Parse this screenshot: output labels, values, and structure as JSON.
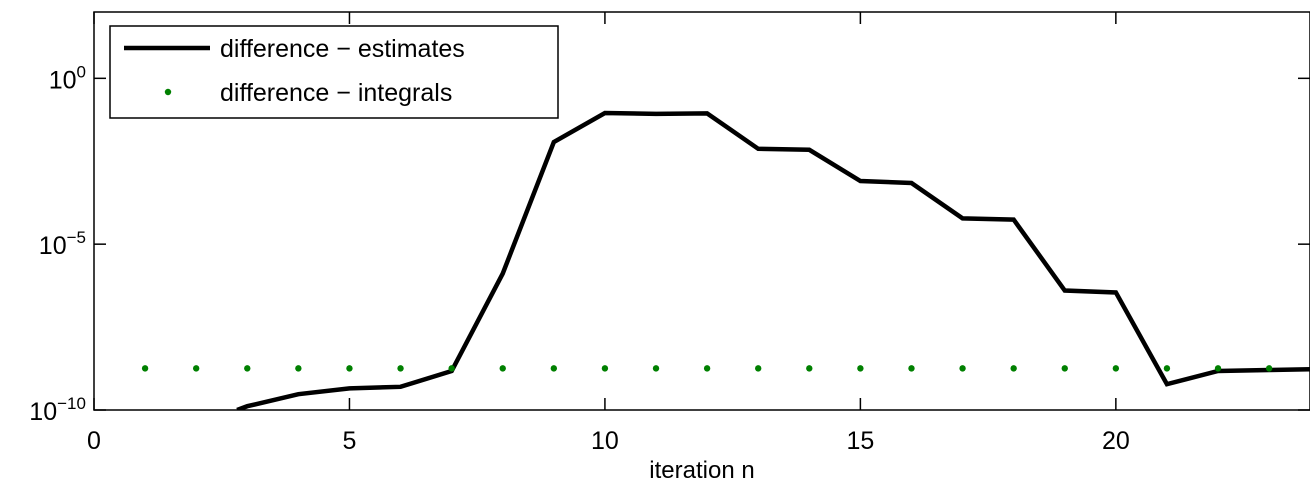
{
  "chart_data": {
    "type": "line",
    "title": "",
    "xlabel": "iteration n",
    "ylabel": "",
    "xlim": [
      0,
      23.8
    ],
    "ylim": [
      1e-10,
      100
    ],
    "yscale": "log",
    "grid": false,
    "legend_position": "top-left",
    "x_ticks": [
      0,
      5,
      10,
      15,
      20
    ],
    "y_ticks": [
      {
        "value": 1e-10,
        "base": "10",
        "exp": "−10"
      },
      {
        "value": 1e-05,
        "base": "10",
        "exp": "−5"
      },
      {
        "value": 1,
        "base": "10",
        "exp": "0"
      }
    ],
    "series": [
      {
        "name": "difference − estimates",
        "style": "solid",
        "color": "#000000",
        "x": [
          2.8,
          3,
          4,
          5,
          6,
          7,
          8,
          9,
          10,
          11,
          12,
          13,
          14,
          15,
          16,
          17,
          18,
          19,
          20,
          21,
          22,
          23,
          23.8
        ],
        "y": [
          1e-10,
          1.3e-10,
          3e-10,
          4.5e-10,
          5e-10,
          1.5e-09,
          1.3e-06,
          0.012,
          0.09,
          0.085,
          0.088,
          0.0075,
          0.007,
          0.0008,
          0.0007,
          6e-05,
          5.5e-05,
          4e-07,
          3.5e-07,
          6e-10,
          1.5e-09,
          1.6e-09,
          1.7e-09
        ]
      },
      {
        "name": "difference − integrals",
        "style": "dotted",
        "color": "#008000",
        "x": [
          1,
          2,
          3,
          4,
          5,
          6,
          7,
          8,
          9,
          10,
          11,
          12,
          13,
          14,
          15,
          16,
          17,
          18,
          19,
          20,
          21,
          22,
          23
        ],
        "y": [
          1.8e-09,
          1.8e-09,
          1.8e-09,
          1.8e-09,
          1.8e-09,
          1.8e-09,
          1.8e-09,
          1.8e-09,
          1.8e-09,
          1.8e-09,
          1.8e-09,
          1.8e-09,
          1.8e-09,
          1.8e-09,
          1.8e-09,
          1.8e-09,
          1.8e-09,
          1.8e-09,
          1.8e-09,
          1.8e-09,
          1.8e-09,
          1.8e-09,
          1.8e-09
        ]
      }
    ]
  }
}
